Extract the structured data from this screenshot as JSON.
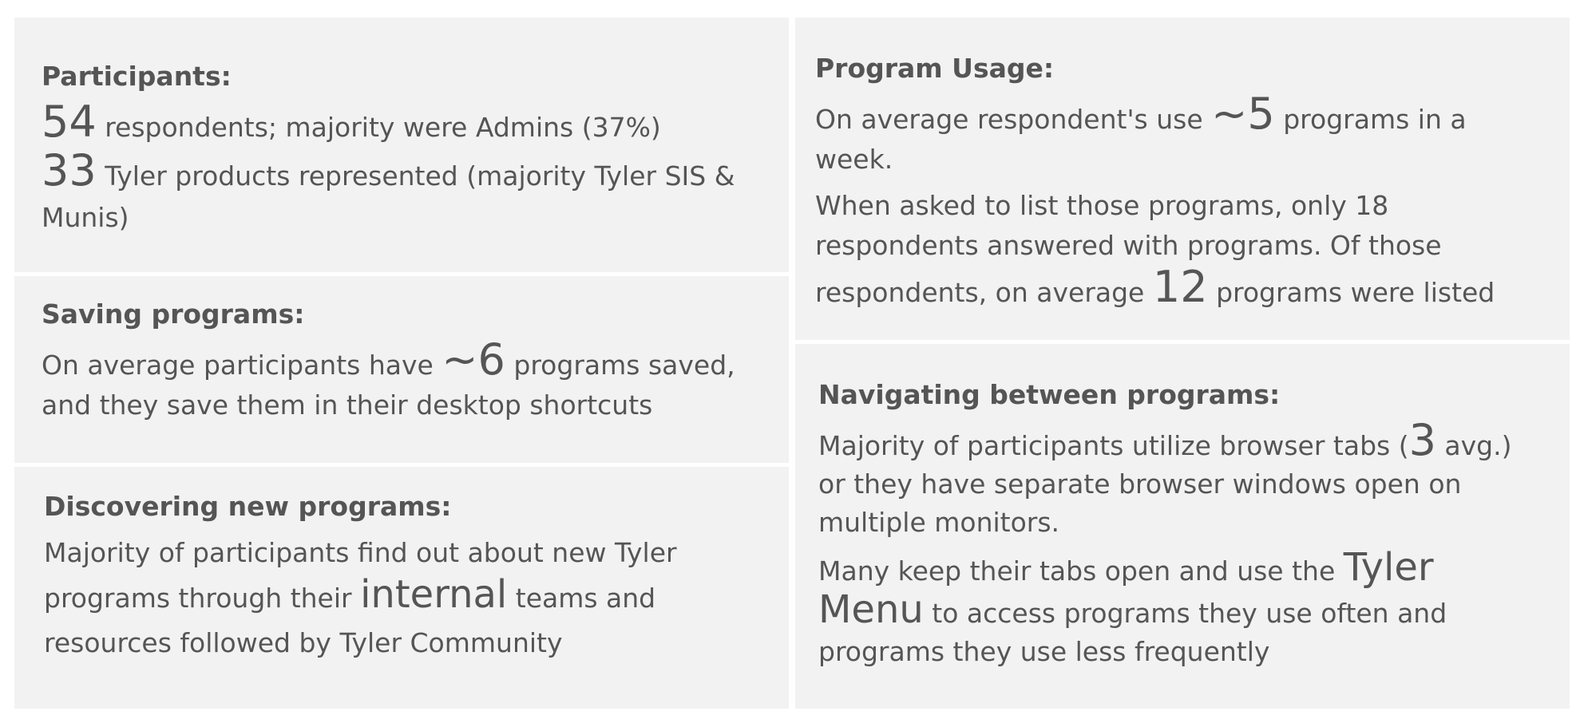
{
  "participants": {
    "title": "Participants:",
    "respondents_count": "54",
    "respondents_text": " respondents; majority were Admins (37%)",
    "products_count": "33",
    "products_text": " Tyler products represented (majority Tyler SIS & Munis)"
  },
  "saving": {
    "title": "Saving programs:",
    "text_before": "On average participants have ",
    "avg_saved": "~6",
    "text_after": " programs saved, and they save them in their desktop shortcuts"
  },
  "discovering": {
    "title": "Discovering new programs:",
    "text_before": "Majority of participants find out about new Tyler programs through their ",
    "emphasis": "internal",
    "text_after": " teams and resources followed by Tyler Community"
  },
  "usage": {
    "title": "Program Usage:",
    "line1_before": "On average respondent's use ",
    "weekly_avg": "~5",
    "line1_after": " programs in a week.",
    "line2_before": "When asked to list those programs, only 18 respondents answered with programs. Of those respondents, on average ",
    "listed_avg": "12",
    "line2_after": " programs were listed"
  },
  "navigating": {
    "title": "Navigating between programs:",
    "line1_before": "Majority of participants utilize browser tabs (",
    "tabs_avg": "3",
    "line1_after": " avg.) or they have separate browser windows open on multiple monitors.",
    "line2_before": "Many keep their tabs open and use the ",
    "menu_name": "Tyler Menu",
    "line2_after": " to access programs they use often and programs they use less frequently"
  }
}
